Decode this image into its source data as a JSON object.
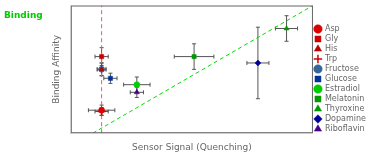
{
  "chart_data": {
    "type": "scatter",
    "xlabel": "Sensor Signal (Quenching)",
    "ylabel": "Binding Affinity",
    "xlim": [
      -0.1,
      1.0
    ],
    "ylim": [
      0.0,
      1.0
    ],
    "tick_labels": false,
    "grid": false,
    "legend": "right",
    "error_bar_color": "#555555",
    "series": [
      {
        "name": "Asp",
        "color": "#dd0000",
        "marker": "circle",
        "x": [
          0.04
        ],
        "y": [
          0.18
        ],
        "xerr": [
          0.06
        ],
        "yerr": [
          0.04
        ]
      },
      {
        "name": "Gly",
        "color": "#cc0000",
        "marker": "square",
        "x": [
          0.04
        ],
        "y": [
          0.6
        ],
        "xerr": [
          0.03
        ],
        "yerr": [
          0.07
        ]
      },
      {
        "name": "His",
        "color": "#bb0000",
        "marker": "triangle",
        "x": [
          0.04
        ],
        "y": [
          0.5
        ],
        "xerr": [
          0.02
        ],
        "yerr": [
          0.05
        ]
      },
      {
        "name": "Trp",
        "color": "#cc0000",
        "marker": "plus",
        "x": [
          0.04
        ],
        "y": [
          0.17
        ],
        "xerr": [
          0.03
        ],
        "yerr": [
          0.03
        ]
      },
      {
        "name": "Fructose",
        "color": "#336699",
        "marker": "circle",
        "x": [
          0.04
        ],
        "y": [
          0.5
        ],
        "xerr": [
          0.02
        ],
        "yerr": [
          0.05
        ]
      },
      {
        "name": "Glucose",
        "color": "#003399",
        "marker": "square",
        "x": [
          0.08
        ],
        "y": [
          0.43
        ],
        "xerr": [
          0.03
        ],
        "yerr": [
          0.04
        ]
      },
      {
        "name": "Estradiol",
        "color": "#00cc00",
        "marker": "circle",
        "x": [
          0.2
        ],
        "y": [
          0.38
        ],
        "xerr": [
          0.06
        ],
        "yerr": [
          0.06
        ]
      },
      {
        "name": "Melatonin",
        "color": "#009900",
        "marker": "square",
        "x": [
          0.46
        ],
        "y": [
          0.6
        ],
        "xerr": [
          0.09
        ],
        "yerr": [
          0.1
        ]
      },
      {
        "name": "Thyroxine",
        "color": "#009900",
        "marker": "triangle",
        "x": [
          0.88
        ],
        "y": [
          0.82
        ],
        "xerr": [
          0.05
        ],
        "yerr": [
          0.1
        ]
      },
      {
        "name": "Dopamine",
        "color": "#000099",
        "marker": "diamond",
        "x": [
          0.75
        ],
        "y": [
          0.55
        ],
        "xerr": [
          0.05
        ],
        "yerr": [
          0.28
        ]
      },
      {
        "name": "Riboflavin",
        "color": "#440088",
        "marker": "triangle",
        "x": [
          0.2
        ],
        "y": [
          0.32
        ],
        "xerr": [
          0.03
        ],
        "yerr": [
          0.04
        ]
      }
    ],
    "lines": [
      {
        "x": [
          0,
          1.0
        ],
        "y": [
          0,
          1.0
        ],
        "color": "#00dd00",
        "line_style": "dashed"
      }
    ],
    "vlines": [
      {
        "x": 0.04,
        "color": "#ff5555",
        "line_style": "dashed"
      }
    ],
    "annotations": [
      {
        "text": "Binding",
        "color": "#00cc00"
      }
    ]
  }
}
